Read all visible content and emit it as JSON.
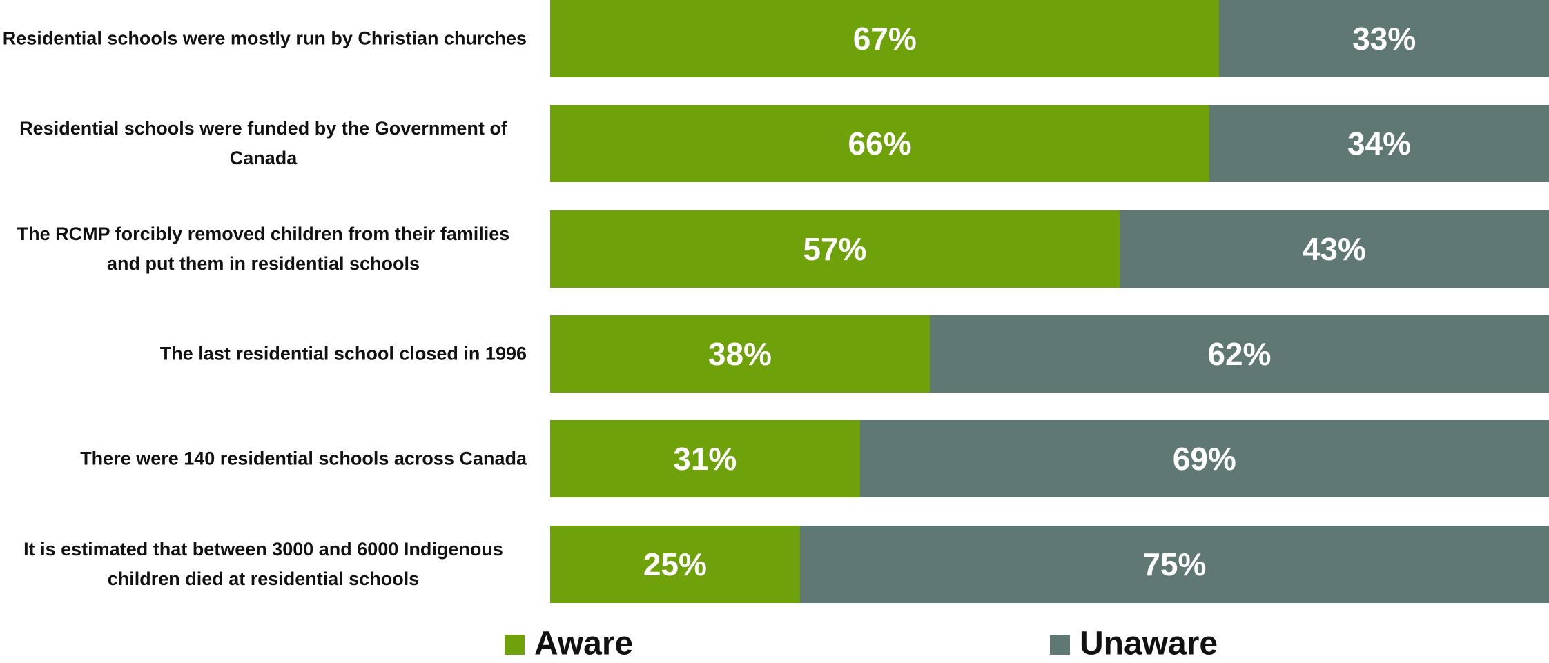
{
  "chart_data": {
    "type": "stacked_bar_horizontal",
    "categories": [
      "Residential schools were mostly run by Christian churches",
      "Residential schools were funded by the Government of Canada",
      "The RCMP forcibly removed children from their families and put them in residential schools",
      "The last residential school closed in 1996",
      "There were 140 residential schools across Canada",
      "It is estimated that between 3000 and 6000 Indigenous children died at residential schools"
    ],
    "series": [
      {
        "name": "Aware",
        "color": "#6fa10b",
        "values": [
          67,
          66,
          57,
          38,
          31,
          25
        ],
        "value_labels": [
          "67%",
          "66%",
          "57%",
          "38%",
          "31%",
          "25%"
        ]
      },
      {
        "name": "Unaware",
        "color": "#607873",
        "values": [
          33,
          34,
          43,
          62,
          69,
          75
        ],
        "value_labels": [
          "33%",
          "34%",
          "43%",
          "62%",
          "69%",
          "75%"
        ]
      }
    ],
    "xlim": [
      0,
      100
    ],
    "legend": "bottom"
  }
}
